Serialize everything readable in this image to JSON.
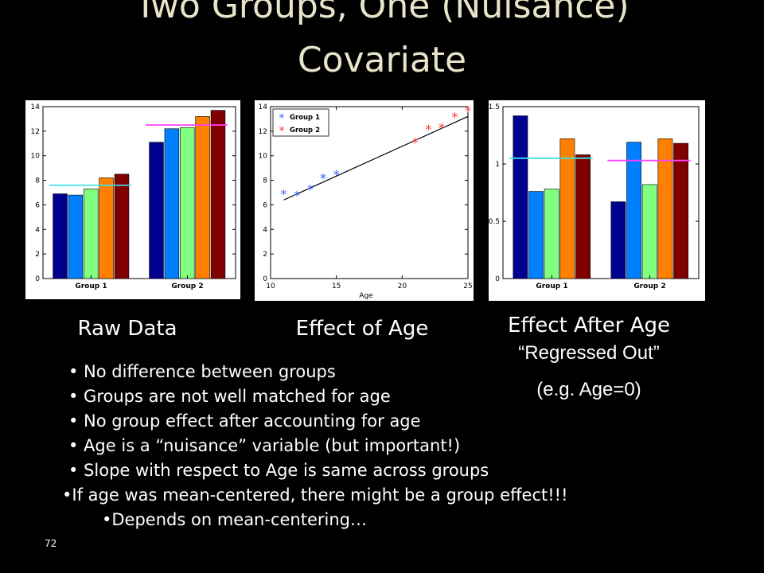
{
  "slide": {
    "title_line1": "Two Groups, One (Nuisance)",
    "title_line2": "Covariate",
    "page_number": "72"
  },
  "captions": {
    "raw": "Raw Data",
    "age": "Effect of Age",
    "after_line1": "Effect After Age",
    "after_line2": "“Regressed Out”",
    "after_line3": "(e.g. Age=0)"
  },
  "bullets": [
    "• No difference between groups",
    "• Groups are not well matched for age",
    "• No group effect after accounting for age",
    "• Age is a “nuisance” variable (but important!)",
    "• Slope with respect to Age is same across groups",
    "•If age was mean-centered, there might be a group effect!!!",
    "•Depends on mean-centering…"
  ],
  "chart_data": [
    {
      "type": "bar",
      "categories": [
        "Group 1",
        "Group 2"
      ],
      "series_colors": [
        "#00008f",
        "#0080ff",
        "#80ff80",
        "#ff8000",
        "#800000"
      ],
      "values": [
        [
          6.9,
          6.8,
          7.3,
          8.2,
          8.5
        ],
        [
          11.1,
          12.2,
          12.3,
          13.2,
          13.7
        ]
      ],
      "group_means": [
        7.6,
        12.5
      ],
      "mean_line_colors": [
        "#40e0e0",
        "#ff40ff"
      ],
      "ylim": [
        0,
        14
      ],
      "yticks": [
        0,
        2,
        4,
        6,
        8,
        10,
        12,
        14
      ]
    },
    {
      "type": "scatter",
      "xlabel": "Age",
      "xlim": [
        10,
        25
      ],
      "ylim": [
        0,
        14
      ],
      "xticks": [
        10,
        15,
        20,
        25
      ],
      "yticks": [
        0,
        2,
        4,
        6,
        8,
        10,
        12,
        14
      ],
      "series": [
        {
          "name": "Group 1",
          "color": "#4060ff",
          "x": [
            11,
            12,
            13,
            14,
            15
          ],
          "y": [
            6.9,
            6.8,
            7.3,
            8.2,
            8.5
          ]
        },
        {
          "name": "Group 2",
          "color": "#ff3030",
          "x": [
            21,
            22,
            23,
            24,
            25
          ],
          "y": [
            11.1,
            12.2,
            12.3,
            13.2,
            13.7
          ]
        }
      ],
      "fit_line": {
        "x": [
          11,
          25
        ],
        "y": [
          6.4,
          13.2
        ]
      },
      "legend": "top-left"
    },
    {
      "type": "bar",
      "categories": [
        "Group 1",
        "Group 2"
      ],
      "series_colors": [
        "#00008f",
        "#0080ff",
        "#80ff80",
        "#ff8000",
        "#800000"
      ],
      "values": [
        [
          1.42,
          0.76,
          0.78,
          1.22,
          1.08
        ],
        [
          0.67,
          1.19,
          0.82,
          1.22,
          1.18
        ]
      ],
      "group_means": [
        1.05,
        1.03
      ],
      "mean_line_colors": [
        "#40e0e0",
        "#ff40ff"
      ],
      "ylim": [
        0,
        1.5
      ],
      "yticks": [
        0,
        0.5,
        1,
        1.5
      ]
    }
  ]
}
